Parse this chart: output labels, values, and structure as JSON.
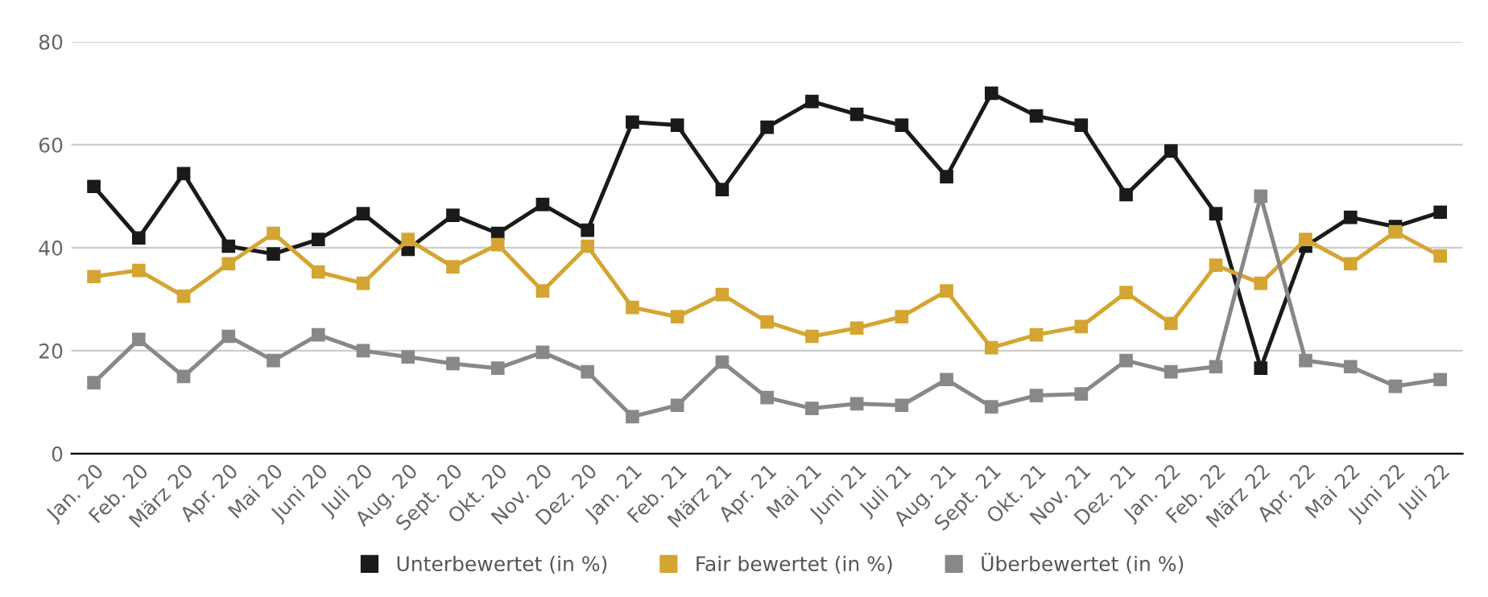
{
  "chart_data": {
    "type": "line",
    "categories": [
      "Jan. 20",
      "Feb. 20",
      "März 20",
      "Apr. 20",
      "Mai 20",
      "Juni 20",
      "Juli 20",
      "Aug. 20",
      "Sept. 20",
      "Okt. 20",
      "Nov. 20",
      "Dez. 20",
      "Jan. 21",
      "Feb. 21",
      "März 21",
      "Apr. 21",
      "Mai 21",
      "Juni 21",
      "Juli 21",
      "Aug. 21",
      "Sept. 21",
      "Okt. 21",
      "Nov. 21",
      "Dez. 21",
      "Jan. 22",
      "Feb. 22",
      "März 22",
      "Apr. 22",
      "Mai 22",
      "Juni 22",
      "Juli 22"
    ],
    "series": [
      {
        "name": "Unterbewertet (in %)",
        "color": "#1a1a1a",
        "values": [
          51.9,
          41.9,
          54.4,
          40.3,
          38.8,
          41.6,
          46.6,
          39.7,
          46.3,
          42.8,
          48.4,
          43.4,
          64.4,
          63.8,
          51.3,
          63.4,
          68.4,
          65.9,
          63.8,
          53.8,
          70.0,
          65.6,
          63.8,
          50.3,
          58.8,
          46.6,
          16.6,
          40.3,
          45.9,
          44.1,
          46.9
        ]
      },
      {
        "name": "Fair bewertet (in %)",
        "color": "#d4a532",
        "values": [
          34.4,
          35.6,
          30.6,
          36.9,
          42.8,
          35.3,
          33.1,
          41.6,
          36.3,
          40.6,
          31.6,
          40.3,
          28.4,
          26.6,
          30.9,
          25.6,
          22.8,
          24.4,
          26.6,
          31.6,
          20.6,
          23.1,
          24.7,
          31.3,
          25.3,
          36.6,
          33.1,
          41.6,
          36.9,
          43.1,
          38.4
        ]
      },
      {
        "name": "Überbewertet (in %)",
        "color": "#888888",
        "values": [
          13.8,
          22.2,
          15.0,
          22.8,
          18.1,
          23.1,
          20.0,
          18.8,
          17.5,
          16.6,
          19.7,
          15.9,
          7.2,
          9.4,
          17.8,
          10.9,
          8.8,
          9.7,
          9.4,
          14.4,
          9.1,
          11.3,
          11.6,
          18.1,
          15.9,
          16.9,
          50.0,
          18.1,
          16.9,
          13.1,
          14.4
        ]
      }
    ],
    "ylim": [
      0,
      80
    ],
    "yticks": [
      0,
      20,
      40,
      60,
      80
    ],
    "grid": "y",
    "legend": "bottom",
    "marker": "square",
    "line_style": "solid"
  }
}
